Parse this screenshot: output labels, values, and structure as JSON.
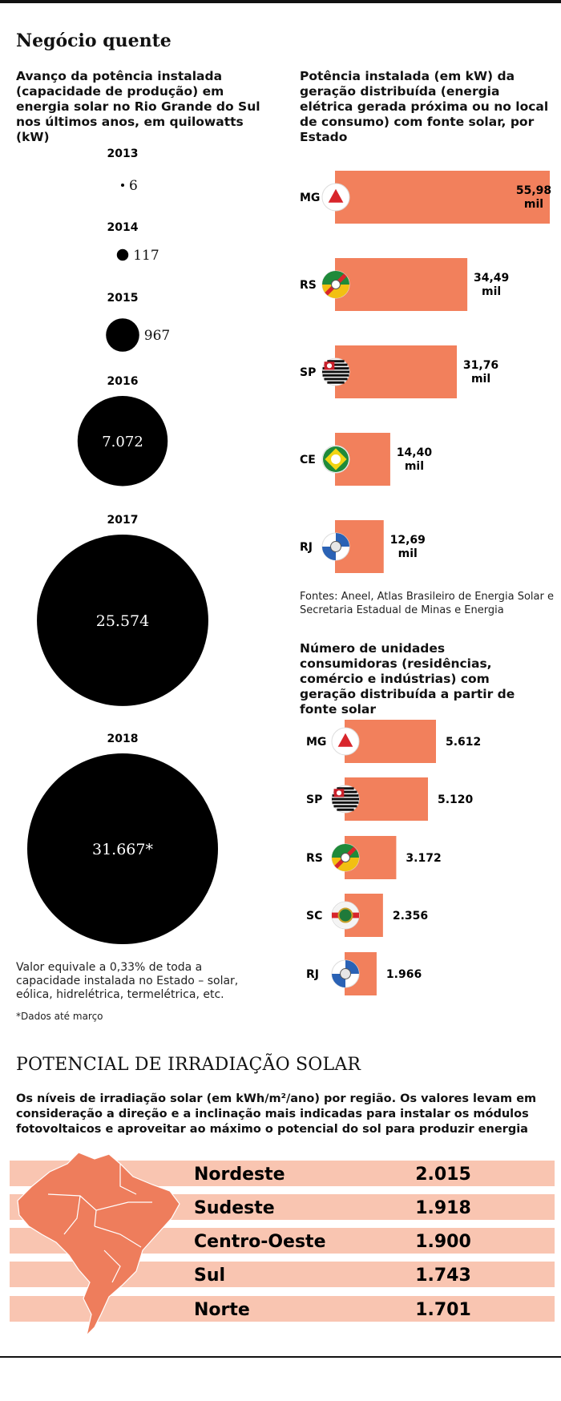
{
  "title": "Negócio quente",
  "left_chart": {
    "subtitle": "Avanço da potência instalada (capacidade de produção) em energia solar no Rio Grande do Sul nos últimos anos, em quilowatts (kW)",
    "note": "Valor equivale a 0,33% de toda a capacidade instalada no Estado – solar, eólica, hidrelétrica, termelétrica, etc.",
    "footnote": "*Dados até março"
  },
  "right_chart": {
    "subtitle": "Potência instalada (em kW) da geração distribuída (energia elétrica gerada próxima ou no local de consumo) com fonte solar, por Estado",
    "sources": "Fontes: Aneel, Atlas Brasileiro de Energia Solar e Secretaria Estadual de Minas e Energia"
  },
  "units_chart": {
    "subtitle": "Número de unidades consumidoras (residências, comércio e indústrias) com geração distribuída a partir de fonte solar"
  },
  "irradiation": {
    "title": "POTENCIAL DE IRRADIAÇÃO SOLAR",
    "description": "Os níveis de irradiação solar (em kWh/m²/ano) por região. Os valores levam em consideração a direção e a inclinação mais indicadas para instalar os módulos fotovoltaicos e aproveitar ao máximo o potencial do sol para produzir energia"
  },
  "colors": {
    "bar": "#f2805c",
    "bubble": "#000000",
    "stripe": "#f9c5b1",
    "map": "#ee7d5c"
  },
  "chart_data": [
    {
      "type": "scatter",
      "encoding": "bubble-area",
      "categories": [
        "2013",
        "2014",
        "2015",
        "2016",
        "2017",
        "2018"
      ],
      "values": [
        6,
        117,
        967,
        7072,
        25574,
        31667
      ],
      "labels": [
        "6",
        "117",
        "967",
        "7.072",
        "25.574",
        "31.667*"
      ]
    },
    {
      "type": "bar",
      "orientation": "horizontal",
      "categories": [
        "MG",
        "RS",
        "SP",
        "CE",
        "RJ"
      ],
      "values": [
        55980,
        34490,
        31760,
        14400,
        12690
      ],
      "labels": [
        "55,98 mil",
        "34,49 mil",
        "31,76 mil",
        "14,40 mil",
        "12,69 mil"
      ]
    },
    {
      "type": "bar",
      "orientation": "horizontal",
      "categories": [
        "MG",
        "SP",
        "RS",
        "SC",
        "RJ"
      ],
      "values": [
        5612,
        5120,
        3172,
        2356,
        1966
      ],
      "labels": [
        "5.612",
        "5.120",
        "3.172",
        "2.356",
        "1.966"
      ]
    },
    {
      "type": "table",
      "categories": [
        "Nordeste",
        "Sudeste",
        "Centro-Oeste",
        "Sul",
        "Norte"
      ],
      "values": [
        2015,
        1918,
        1900,
        1743,
        1701
      ],
      "labels": [
        "2.015",
        "1.918",
        "1.900",
        "1.743",
        "1.701"
      ]
    }
  ]
}
